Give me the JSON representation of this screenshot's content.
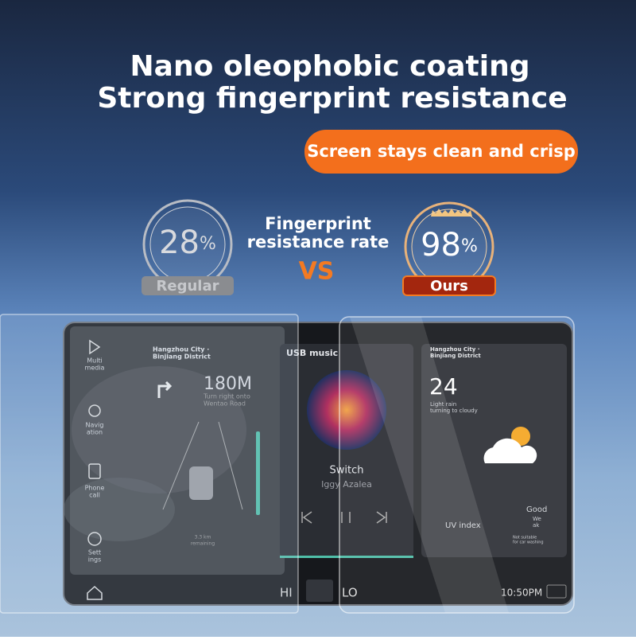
{
  "header": {
    "title_lines": [
      "Nano oleophobic coating",
      "Strong fingerprint resistance"
    ],
    "badge": "Screen stays clean and crisp"
  },
  "comparison": {
    "metric": [
      "Fingerprint",
      "resistance rate"
    ],
    "vs": "VS",
    "regular": {
      "value": "28",
      "unit": "%",
      "label": "Regular"
    },
    "ours": {
      "value": "98",
      "unit": "%",
      "label": "Ours"
    }
  },
  "screen": {
    "sidebar": [
      [
        "Multi",
        "media"
      ],
      [
        "Navig",
        "ation"
      ],
      [
        "Phone",
        "call"
      ],
      [
        "Sett",
        "ings"
      ]
    ],
    "navigation": {
      "location": [
        "Hangzhou City ·",
        "Binjiang District"
      ],
      "distance": "180M",
      "instruction": [
        "Turn right onto",
        "Wentao Road"
      ],
      "remaining": [
        "3.3 km",
        "remaining"
      ]
    },
    "music": {
      "source": "USB music",
      "song": "Switch",
      "artist": "Iggy Azalea"
    },
    "weather": {
      "location": [
        "Hangzhou City ·",
        "Binjiang District"
      ],
      "temperature": "24",
      "condition": [
        "Light rain",
        "turning to cloudy"
      ],
      "air_quality": "Good",
      "uv_label": "UV index",
      "uv_value": [
        "We",
        "ak"
      ],
      "car_wash": [
        "Not suitable",
        "for car washing"
      ]
    },
    "status_bar": {
      "climate_left": "HI",
      "climate_right": "LO",
      "time": "10:50PM"
    }
  }
}
